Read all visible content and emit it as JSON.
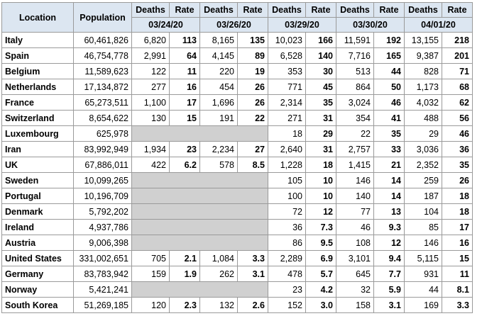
{
  "headers": {
    "location": "Location",
    "population": "Population",
    "deaths": "Deaths",
    "rate": "Rate",
    "dates": [
      "03/24/20",
      "03/26/20",
      "03/29/20",
      "03/30/20",
      "04/01/20"
    ]
  },
  "rows": [
    {
      "location": "Italy",
      "population": "60,461,826",
      "cells": [
        [
          "6,820",
          "113"
        ],
        [
          "8,165",
          "135"
        ],
        [
          "10,023",
          "166"
        ],
        [
          "11,591",
          "192"
        ],
        [
          "13,155",
          "218"
        ]
      ]
    },
    {
      "location": "Spain",
      "population": "46,754,778",
      "cells": [
        [
          "2,991",
          "64"
        ],
        [
          "4,145",
          "89"
        ],
        [
          "6,528",
          "140"
        ],
        [
          "7,716",
          "165"
        ],
        [
          "9,387",
          "201"
        ]
      ]
    },
    {
      "location": "Belgium",
      "population": "11,589,623",
      "cells": [
        [
          "122",
          "11"
        ],
        [
          "220",
          "19"
        ],
        [
          "353",
          "30"
        ],
        [
          "513",
          "44"
        ],
        [
          "828",
          "71"
        ]
      ]
    },
    {
      "location": "Netherlands",
      "population": "17,134,872",
      "cells": [
        [
          "277",
          "16"
        ],
        [
          "454",
          "26"
        ],
        [
          "771",
          "45"
        ],
        [
          "864",
          "50"
        ],
        [
          "1,173",
          "68"
        ]
      ]
    },
    {
      "location": "France",
      "population": "65,273,511",
      "cells": [
        [
          "1,100",
          "17"
        ],
        [
          "1,696",
          "26"
        ],
        [
          "2,314",
          "35"
        ],
        [
          "3,024",
          "46"
        ],
        [
          "4,032",
          "62"
        ]
      ]
    },
    {
      "location": "Switzerland",
      "population": "8,654,622",
      "cells": [
        [
          "130",
          "15"
        ],
        [
          "191",
          "22"
        ],
        [
          "271",
          "31"
        ],
        [
          "354",
          "41"
        ],
        [
          "488",
          "56"
        ]
      ]
    },
    {
      "location": "Luxembourg",
      "population": "625,978",
      "cells": [
        null,
        null,
        [
          "18",
          "29"
        ],
        [
          "22",
          "35"
        ],
        [
          "29",
          "46"
        ]
      ]
    },
    {
      "location": "Iran",
      "population": "83,992,949",
      "cells": [
        [
          "1,934",
          "23"
        ],
        [
          "2,234",
          "27"
        ],
        [
          "2,640",
          "31"
        ],
        [
          "2,757",
          "33"
        ],
        [
          "3,036",
          "36"
        ]
      ]
    },
    {
      "location": "UK",
      "population": "67,886,011",
      "cells": [
        [
          "422",
          "6.2"
        ],
        [
          "578",
          "8.5"
        ],
        [
          "1,228",
          "18"
        ],
        [
          "1,415",
          "21"
        ],
        [
          "2,352",
          "35"
        ]
      ]
    },
    {
      "location": "Sweden",
      "population": "10,099,265",
      "cells": [
        null,
        null,
        [
          "105",
          "10"
        ],
        [
          "146",
          "14"
        ],
        [
          "259",
          "26"
        ]
      ]
    },
    {
      "location": "Portugal",
      "population": "10,196,709",
      "cells": [
        null,
        null,
        [
          "100",
          "10"
        ],
        [
          "140",
          "14"
        ],
        [
          "187",
          "18"
        ]
      ]
    },
    {
      "location": "Denmark",
      "population": "5,792,202",
      "cells": [
        null,
        null,
        [
          "72",
          "12"
        ],
        [
          "77",
          "13"
        ],
        [
          "104",
          "18"
        ]
      ]
    },
    {
      "location": "Ireland",
      "population": "4,937,786",
      "cells": [
        null,
        null,
        [
          "36",
          "7.3"
        ],
        [
          "46",
          "9.3"
        ],
        [
          "85",
          "17"
        ]
      ]
    },
    {
      "location": "Austria",
      "population": "9,006,398",
      "cells": [
        null,
        null,
        [
          "86",
          "9.5"
        ],
        [
          "108",
          "12"
        ],
        [
          "146",
          "16"
        ]
      ]
    },
    {
      "location": "United States",
      "population": "331,002,651",
      "cells": [
        [
          "705",
          "2.1"
        ],
        [
          "1,084",
          "3.3"
        ],
        [
          "2,289",
          "6.9"
        ],
        [
          "3,101",
          "9.4"
        ],
        [
          "5,115",
          "15"
        ]
      ]
    },
    {
      "location": "Germany",
      "population": "83,783,942",
      "cells": [
        [
          "159",
          "1.9"
        ],
        [
          "262",
          "3.1"
        ],
        [
          "478",
          "5.7"
        ],
        [
          "645",
          "7.7"
        ],
        [
          "931",
          "11"
        ]
      ]
    },
    {
      "location": "Norway",
      "population": "5,421,241",
      "cells": [
        null,
        null,
        [
          "23",
          "4.2"
        ],
        [
          "32",
          "5.9"
        ],
        [
          "44",
          "8.1"
        ]
      ]
    },
    {
      "location": "South Korea",
      "population": "51,269,185",
      "cells": [
        [
          "120",
          "2.3"
        ],
        [
          "132",
          "2.6"
        ],
        [
          "152",
          "3.0"
        ],
        [
          "158",
          "3.1"
        ],
        [
          "169",
          "3.3"
        ]
      ]
    }
  ]
}
